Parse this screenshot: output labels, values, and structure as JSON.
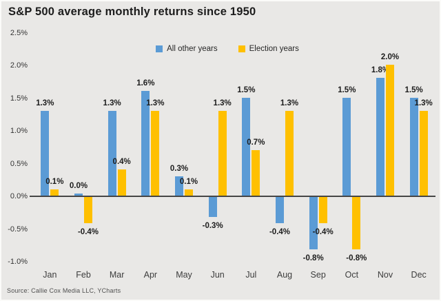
{
  "title": "S&P 500 average monthly returns since 1950",
  "source_note": "Source: Callie Cox Media LLC, YCharts",
  "colors": {
    "background": "#e9e8e6",
    "all_other_years": "#5b9bd5",
    "election_years": "#ffc000",
    "axis_line": "#454545"
  },
  "legend": {
    "items": [
      {
        "label": "All other years",
        "color": "#5b9bd5"
      },
      {
        "label": "Election years",
        "color": "#ffc000"
      }
    ]
  },
  "chart_data": {
    "type": "bar",
    "title": "S&P 500 average monthly returns since 1950",
    "categories": [
      "Jan",
      "Feb",
      "Mar",
      "Apr",
      "May",
      "Jun",
      "Jul",
      "Aug",
      "Sep",
      "Oct",
      "Nov",
      "Dec"
    ],
    "series": [
      {
        "name": "All other years",
        "color": "#5b9bd5",
        "values": [
          1.3,
          0.0,
          1.3,
          1.6,
          0.3,
          -0.3,
          1.5,
          -0.4,
          -0.8,
          1.5,
          1.8,
          1.5
        ]
      },
      {
        "name": "Election years",
        "color": "#ffc000",
        "values": [
          0.1,
          -0.4,
          0.4,
          1.3,
          0.1,
          1.3,
          0.7,
          1.3,
          -0.4,
          -0.8,
          2.0,
          1.3
        ]
      }
    ],
    "xlabel": "",
    "ylabel": "",
    "y_ticks": [
      2.5,
      2.0,
      1.5,
      1.0,
      0.5,
      0.0,
      -0.5,
      -1.0
    ],
    "y_tick_suffix": "%",
    "ylim": [
      -1.0,
      2.5
    ],
    "data_labels": true,
    "grid": false,
    "legend_position": "top-center"
  }
}
